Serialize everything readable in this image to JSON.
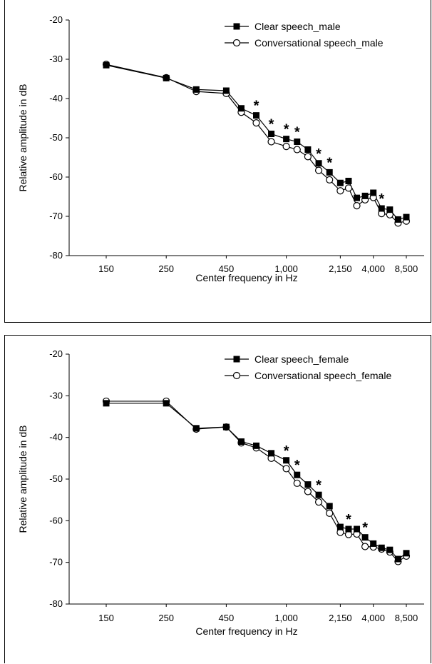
{
  "chart_data": [
    {
      "type": "line",
      "xlabel": "Center frequency in Hz",
      "ylabel": "Relative amplitude in dB",
      "ylim": [
        -80,
        -20
      ],
      "yticks": [
        "-20",
        "-30",
        "-40",
        "-50",
        "-60",
        "-70",
        "-80"
      ],
      "xtick_labels": [
        "150",
        "250",
        "450",
        "1,000",
        "2,150",
        "4,000",
        "8,500"
      ],
      "x": [
        150,
        250,
        350,
        450,
        570,
        700,
        840,
        1000,
        1170,
        1370,
        1600,
        1850,
        2150,
        2500,
        2900,
        3400,
        4000,
        4800,
        5800,
        7000,
        8500
      ],
      "legend_position": "top-right",
      "series": [
        {
          "name": "Clear speech_male",
          "marker": "filled-square",
          "values": [
            -31.5,
            -34.8,
            -37.7,
            -38.0,
            -42.5,
            -44.3,
            -49.0,
            -50.3,
            -51.0,
            -53.0,
            -56.5,
            -58.8,
            -61.5,
            -61.0,
            -65.3,
            -64.8,
            -64.0,
            -68.0,
            -68.3,
            -70.8,
            -70.2
          ]
        },
        {
          "name": "Conversational speech_male",
          "marker": "open-circle",
          "values": [
            -31.3,
            -34.7,
            -38.2,
            -38.7,
            -43.5,
            -46.2,
            -51.0,
            -52.2,
            -53.0,
            -54.8,
            -58.3,
            -60.7,
            -63.5,
            -62.8,
            -67.3,
            -65.8,
            -65.2,
            -69.3,
            -69.6,
            -71.7,
            -71.2
          ]
        }
      ],
      "significance_markers": {
        "symbol": "*",
        "at_x": [
          700,
          840,
          1000,
          1170,
          1600,
          1850,
          4800
        ]
      }
    },
    {
      "type": "line",
      "xlabel": "Center frequency in Hz",
      "ylabel": "Relative amplitude in dB",
      "ylim": [
        -80,
        -20
      ],
      "yticks": [
        "-20",
        "-30",
        "-40",
        "-50",
        "-60",
        "-70",
        "-80"
      ],
      "xtick_labels": [
        "150",
        "250",
        "450",
        "1,000",
        "2,150",
        "4,000",
        "8,500"
      ],
      "x": [
        150,
        250,
        350,
        450,
        570,
        700,
        840,
        1000,
        1170,
        1370,
        1600,
        1850,
        2150,
        2500,
        2900,
        3400,
        4000,
        4800,
        5800,
        7000,
        8500
      ],
      "legend_position": "top-right",
      "series": [
        {
          "name": "Clear speech_female",
          "marker": "filled-square",
          "values": [
            -31.8,
            -31.8,
            -37.8,
            -37.5,
            -41.0,
            -42.0,
            -43.8,
            -45.5,
            -49.0,
            -51.3,
            -53.8,
            -56.5,
            -61.5,
            -62.0,
            -62.0,
            -64.0,
            -65.5,
            -66.5,
            -67.0,
            -69.2,
            -67.8
          ]
        },
        {
          "name": "Conversational speech_female",
          "marker": "open-circle",
          "values": [
            -31.3,
            -31.3,
            -38.0,
            -37.5,
            -41.3,
            -42.5,
            -45.0,
            -47.5,
            -51.0,
            -53.0,
            -55.5,
            -58.2,
            -62.8,
            -63.3,
            -63.2,
            -66.2,
            -66.3,
            -66.8,
            -67.5,
            -69.8,
            -68.5
          ]
        }
      ],
      "significance_markers": {
        "symbol": "*",
        "at_x": [
          1000,
          1170,
          1600,
          2500,
          3400
        ]
      }
    }
  ]
}
